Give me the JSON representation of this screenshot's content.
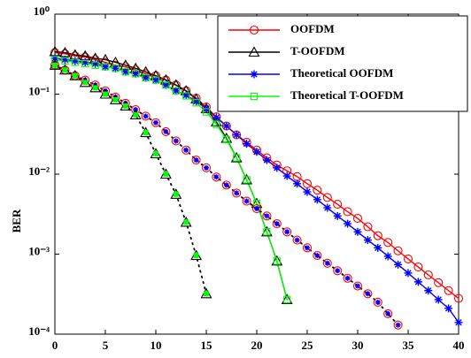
{
  "chart_data": {
    "type": "line",
    "y_label": "BER",
    "log_y": true,
    "legend": "upper right",
    "x": [
      0,
      1,
      2,
      3,
      4,
      5,
      6,
      7,
      8,
      9,
      10,
      11,
      12,
      13,
      14,
      15,
      16,
      17,
      18,
      19,
      20,
      21,
      22,
      23,
      24,
      25,
      26,
      27,
      28,
      29,
      30,
      31,
      32,
      33,
      34,
      35,
      36,
      37,
      38,
      39,
      40
    ],
    "xlim": [
      0,
      40
    ],
    "xticks": [
      0,
      5,
      10,
      15,
      20,
      25,
      30,
      35,
      40
    ],
    "ylim": [
      0.0001,
      1
    ],
    "yticks": [
      {
        "value": 0.0001,
        "label": "10⁻⁴"
      },
      {
        "value": 0.001,
        "label": "10⁻³"
      },
      {
        "value": 0.01,
        "label": "10⁻²"
      },
      {
        "value": 0.1,
        "label": "10⁻¹"
      },
      {
        "value": 1,
        "label": "10⁰"
      }
    ],
    "series": [
      {
        "name": "OOFDM",
        "color": "#ff0000",
        "marker": "circle",
        "line": "solid",
        "values": [
          0.33,
          0.32,
          0.3,
          0.29,
          0.27,
          0.25,
          0.23,
          0.22,
          0.2,
          0.18,
          0.17,
          0.15,
          0.13,
          0.11,
          0.089,
          0.069,
          0.052,
          0.04,
          0.031,
          0.025,
          0.02,
          0.016,
          0.013,
          0.011,
          0.0093,
          0.0076,
          0.0063,
          0.0051,
          0.0042,
          0.0034,
          0.0028,
          0.0022,
          0.0017,
          0.0014,
          0.0011,
          0.00087,
          0.00069,
          0.00055,
          0.00044,
          0.00035,
          0.00028
        ]
      },
      {
        "name": "T-OOFDM",
        "color": "#000000",
        "marker": "triangle",
        "line": "solid",
        "values": [
          0.34,
          0.33,
          0.31,
          0.3,
          0.28,
          0.27,
          0.25,
          0.23,
          0.21,
          0.19,
          0.17,
          0.15,
          0.13,
          0.11,
          0.087,
          0.066,
          0.045,
          0.028,
          0.016,
          0.0085,
          0.0043,
          0.0019,
          0.00082,
          0.00027,
          null,
          null,
          null,
          null,
          null,
          null,
          null,
          null,
          null,
          null,
          null,
          null,
          null,
          null,
          null,
          null,
          null
        ]
      },
      {
        "name": "Theoretical OOFDM",
        "color": "#0000ff",
        "marker": "star",
        "line": "solid",
        "values": [
          0.28,
          0.27,
          0.26,
          0.25,
          0.24,
          0.22,
          0.21,
          0.19,
          0.18,
          0.16,
          0.15,
          0.13,
          0.11,
          0.097,
          0.081,
          0.066,
          0.051,
          0.04,
          0.031,
          0.024,
          0.019,
          0.015,
          0.012,
          0.0095,
          0.0076,
          0.006,
          0.0048,
          0.0038,
          0.003,
          0.0024,
          0.0019,
          0.0015,
          0.0012,
          0.00094,
          0.00074,
          0.00058,
          0.00045,
          0.00035,
          0.00027,
          0.00021,
          0.00014
        ]
      },
      {
        "name": "Theoretical T-OOFDM",
        "color": "#00ff00",
        "marker": "square",
        "line": "solid",
        "values": [
          0.27,
          0.26,
          0.25,
          0.24,
          0.23,
          0.22,
          0.21,
          0.19,
          0.18,
          0.16,
          0.15,
          0.13,
          0.11,
          0.095,
          0.078,
          0.06,
          0.042,
          0.027,
          0.016,
          0.0085,
          0.0043,
          0.0019,
          0.00082,
          0.00027,
          null,
          null,
          null,
          null,
          null,
          null,
          null,
          null,
          null,
          null,
          null,
          null,
          null,
          null,
          null,
          null,
          null
        ]
      },
      {
        "color": "#ff0000",
        "marker": "circle",
        "inner_marker": "star",
        "inner_color": "#0000ff",
        "line": "dotted",
        "line_color": "#000000",
        "values": [
          0.23,
          0.2,
          0.17,
          0.15,
          0.13,
          0.11,
          0.092,
          0.077,
          0.064,
          0.053,
          0.044,
          0.034,
          0.026,
          0.02,
          0.015,
          0.012,
          0.0092,
          0.0073,
          0.0058,
          0.0046,
          0.0037,
          0.003,
          0.0024,
          0.0019,
          0.0015,
          0.0012,
          0.00096,
          0.00077,
          0.00062,
          0.0005,
          0.0004,
          0.00032,
          0.00025,
          0.00018,
          0.00013,
          null,
          null,
          null,
          null,
          null,
          null
        ]
      },
      {
        "color": "#000000",
        "marker": "triangle",
        "inner_marker": "square",
        "inner_color": "#00ff00",
        "line": "dotted",
        "line_color": "#000000",
        "values": [
          0.23,
          0.2,
          0.17,
          0.14,
          0.12,
          0.1,
          0.085,
          0.071,
          0.055,
          0.033,
          0.018,
          0.01,
          0.0056,
          0.0025,
          0.00096,
          0.00032,
          null,
          null,
          null,
          null,
          null,
          null,
          null,
          null,
          null,
          null,
          null,
          null,
          null,
          null,
          null,
          null,
          null,
          null,
          null,
          null,
          null,
          null,
          null,
          null,
          null
        ]
      }
    ]
  }
}
